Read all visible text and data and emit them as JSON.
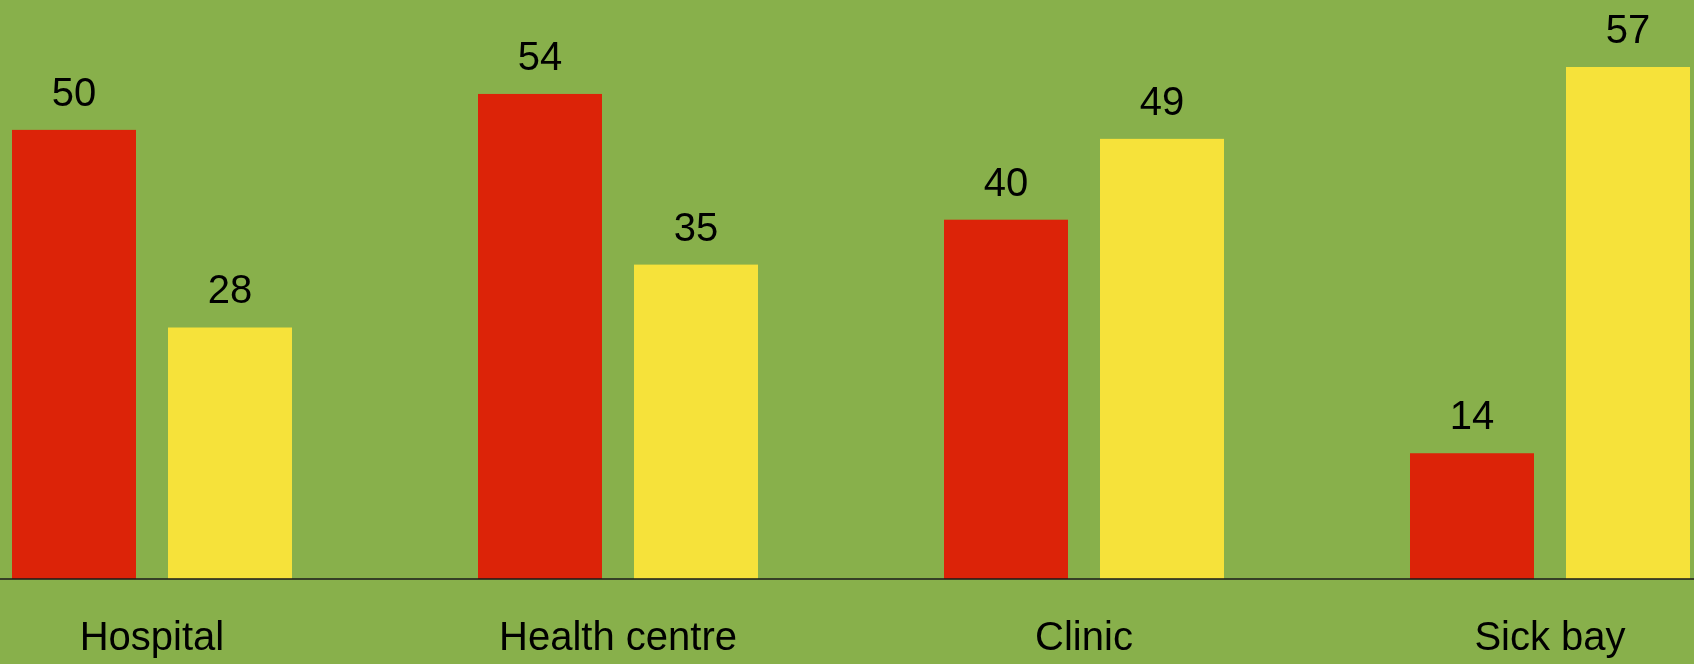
{
  "chart_data": {
    "type": "bar",
    "categories": [
      "Hospital",
      "Health centre",
      "Clinic",
      "Sick bay"
    ],
    "series": [
      {
        "color": "#dc2308",
        "values": [
          50,
          54,
          40,
          14
        ]
      },
      {
        "color": "#f6e23a",
        "values": [
          28,
          35,
          49,
          57
        ]
      }
    ],
    "data_labels": true
  }
}
